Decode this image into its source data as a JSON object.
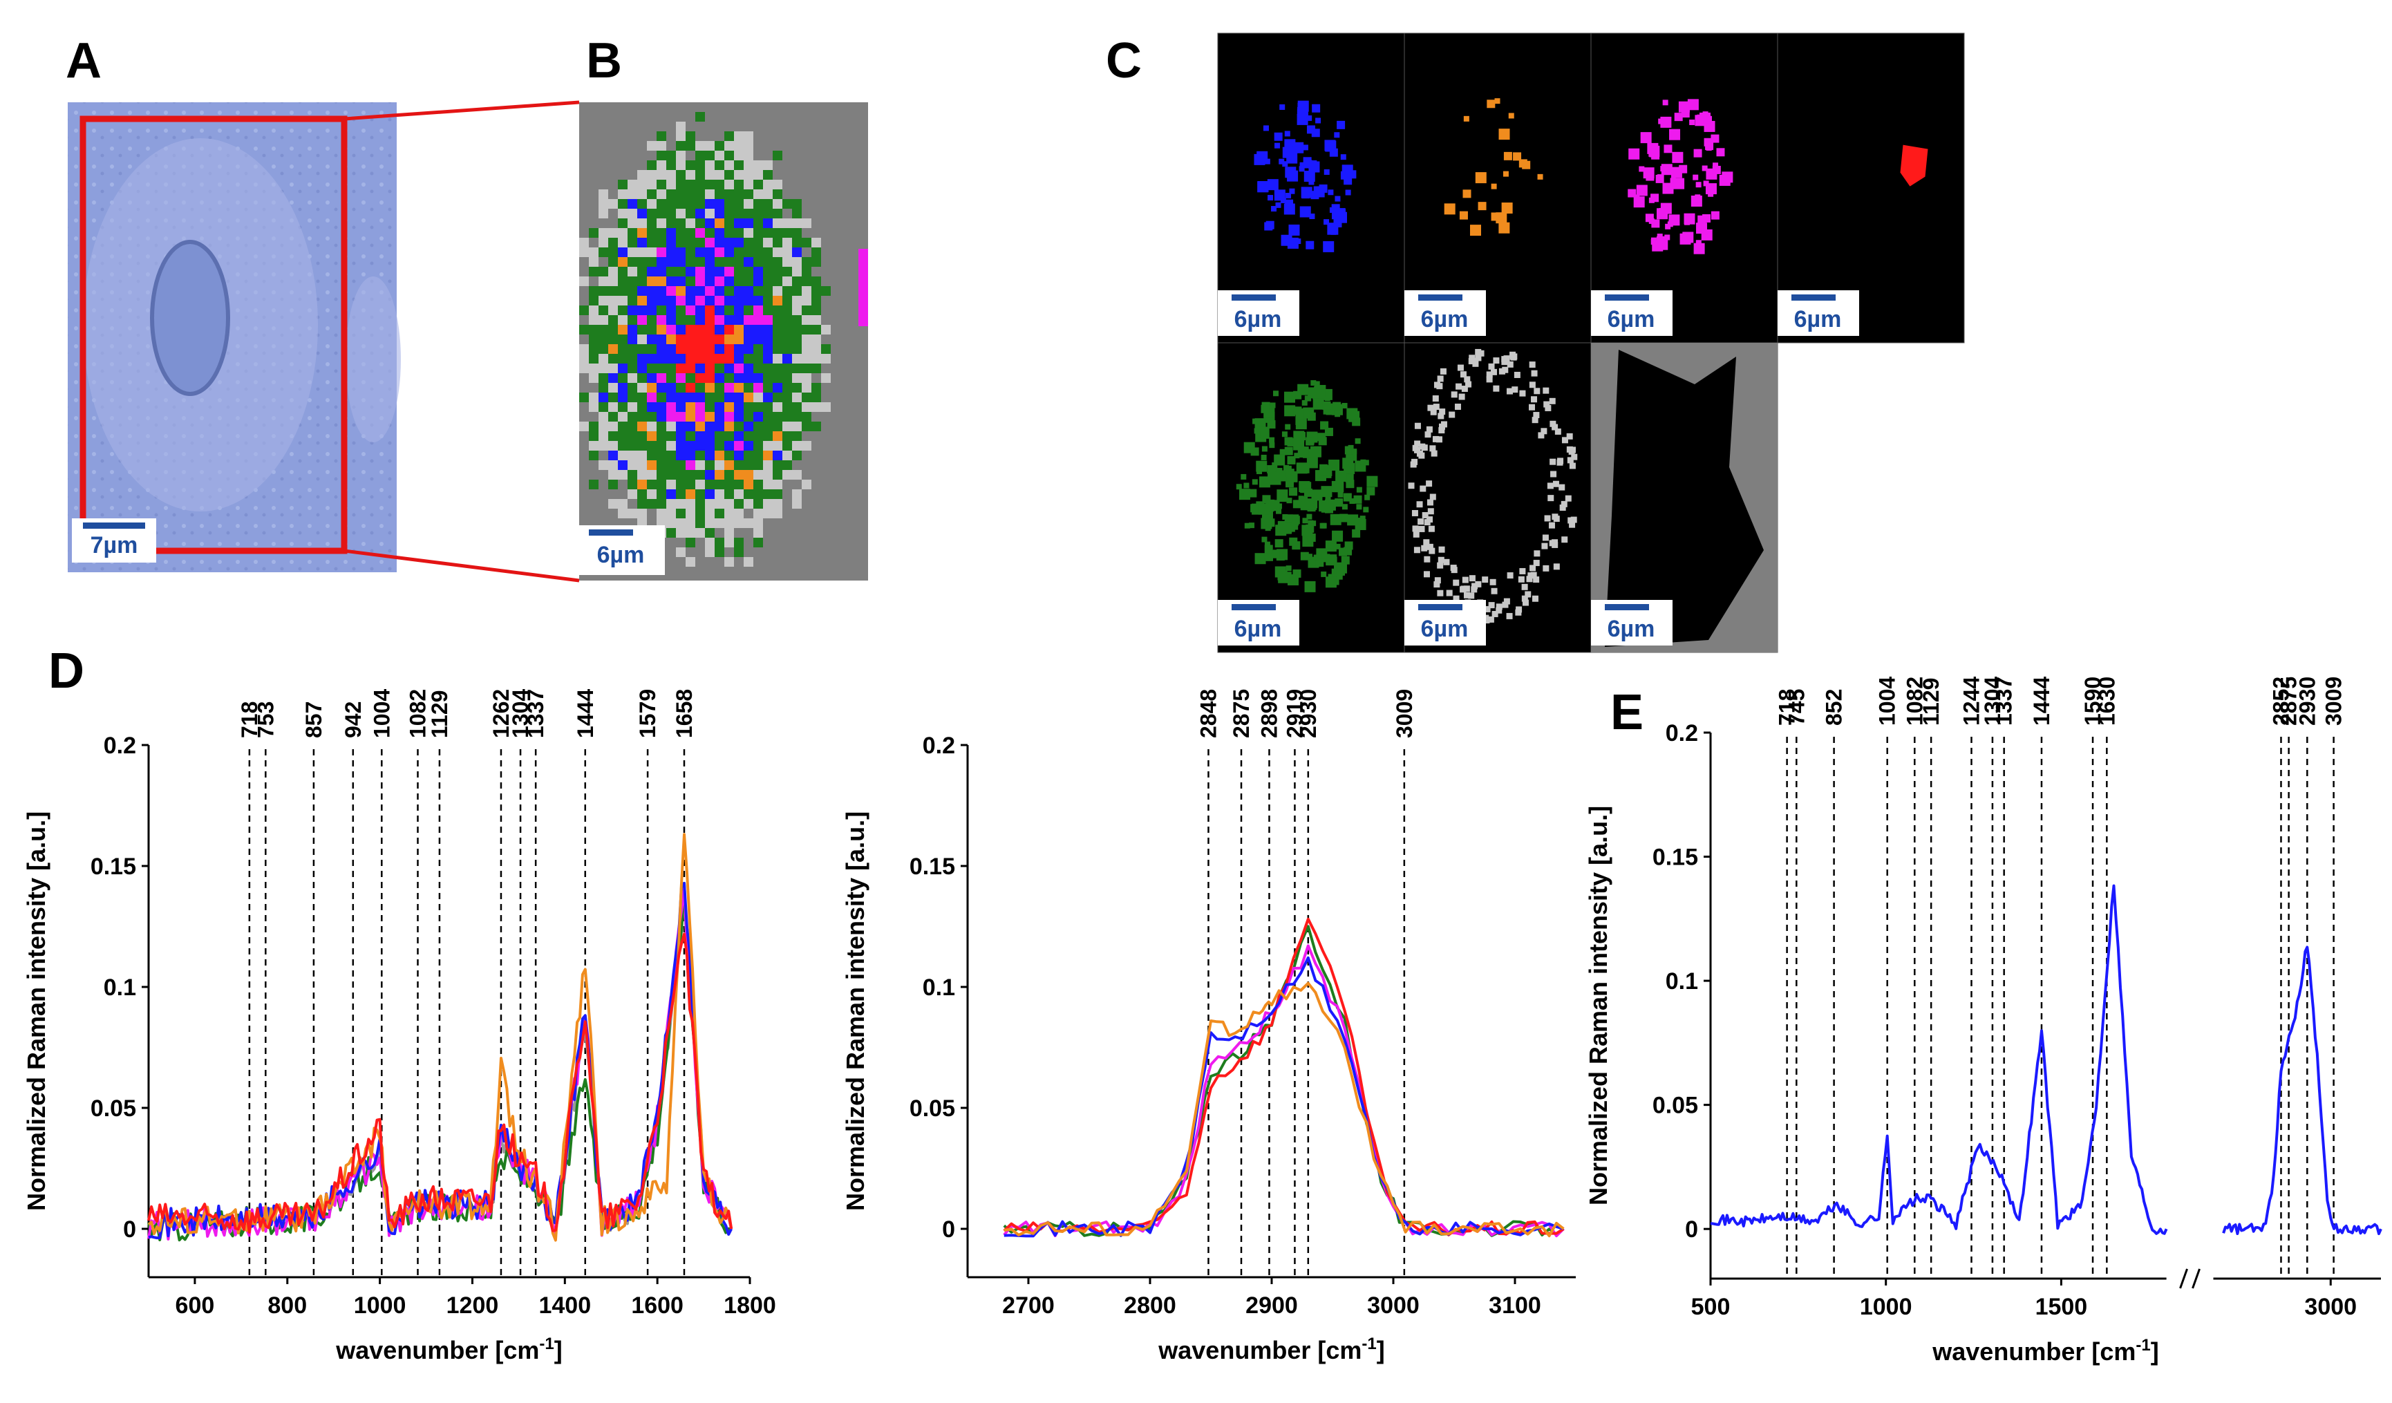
{
  "panels": {
    "A": "A",
    "B": "B",
    "C": "C",
    "D": "D",
    "E": "E"
  },
  "scale_bars": {
    "A": "7µm",
    "B": "6µm",
    "C": "6µm"
  },
  "colors": {
    "blue": "#1a1aff",
    "orange": "#f08c1e",
    "magenta": "#ee1bee",
    "red": "#ff1a1a",
    "green": "#1e7d1e",
    "lightgray": "#c8c8c8",
    "gray": "#7f7f7f",
    "black": "#000000",
    "cell_bg": "#8d9fdc",
    "frame_red": "#e31414",
    "scale_blue": "#1f4e9e"
  },
  "chart_data": [
    {
      "id": "D-left",
      "type": "line",
      "xlabel": "wavenumber [cm-1]",
      "ylabel": "Normalized Raman intensity [a.u.]",
      "xlim": [
        500,
        1800
      ],
      "ylim": [
        -0.02,
        0.2
      ],
      "xticks": [
        600,
        800,
        1000,
        1200,
        1400,
        1600,
        1800
      ],
      "yticks": [
        0,
        0.05,
        0.1,
        0.15,
        0.2
      ],
      "ytick_labels": [
        "0",
        "0.05",
        "0.1",
        "0.15",
        "0.2"
      ],
      "peaks": [
        718,
        753,
        857,
        942,
        1004,
        1082,
        1129,
        1262,
        1304,
        1337,
        1444,
        1579,
        1658
      ],
      "peak_labels": [
        "718",
        "753",
        "857",
        "942",
        "1004",
        "1082",
        "1129",
        "1262",
        "1304",
        "1337",
        "1444",
        "1579",
        "1658"
      ],
      "series": [
        {
          "name": "gray",
          "color": "#9a9a9a",
          "points": [
            [
              500,
              0.002
            ],
            [
              700,
              0.004
            ],
            [
              860,
              0.005
            ],
            [
              1000,
              0.03
            ],
            [
              1020,
              0.002
            ],
            [
              1080,
              0.01
            ],
            [
              1240,
              0.01
            ],
            [
              1262,
              0.035
            ],
            [
              1300,
              0.024
            ],
            [
              1337,
              0.02
            ],
            [
              1380,
              0.002
            ],
            [
              1444,
              0.085
            ],
            [
              1480,
              0.003
            ],
            [
              1560,
              0.01
            ],
            [
              1600,
              0.04
            ],
            [
              1658,
              0.14
            ],
            [
              1700,
              0.02
            ],
            [
              1760,
              0.0
            ]
          ]
        },
        {
          "name": "green",
          "color": "#1e7d1e",
          "points": [
            [
              500,
              0.0
            ],
            [
              700,
              0.003
            ],
            [
              860,
              0.004
            ],
            [
              1000,
              0.028
            ],
            [
              1020,
              0.001
            ],
            [
              1080,
              0.009
            ],
            [
              1240,
              0.008
            ],
            [
              1262,
              0.03
            ],
            [
              1300,
              0.022
            ],
            [
              1337,
              0.018
            ],
            [
              1380,
              0.0
            ],
            [
              1444,
              0.065
            ],
            [
              1480,
              0.002
            ],
            [
              1560,
              0.01
            ],
            [
              1600,
              0.04
            ],
            [
              1658,
              0.138
            ],
            [
              1700,
              0.02
            ],
            [
              1760,
              0.0
            ]
          ]
        },
        {
          "name": "magenta",
          "color": "#ee1bee",
          "points": [
            [
              500,
              0.001
            ],
            [
              700,
              0.003
            ],
            [
              860,
              0.004
            ],
            [
              1000,
              0.03
            ],
            [
              1020,
              0.001
            ],
            [
              1080,
              0.009
            ],
            [
              1240,
              0.009
            ],
            [
              1262,
              0.038
            ],
            [
              1300,
              0.025
            ],
            [
              1337,
              0.02
            ],
            [
              1380,
              0.001
            ],
            [
              1444,
              0.09
            ],
            [
              1480,
              0.002
            ],
            [
              1560,
              0.01
            ],
            [
              1600,
              0.045
            ],
            [
              1658,
              0.14
            ],
            [
              1700,
              0.02
            ],
            [
              1760,
              0.0
            ]
          ]
        },
        {
          "name": "blue",
          "color": "#1a1aff",
          "points": [
            [
              500,
              0.002
            ],
            [
              700,
              0.004
            ],
            [
              860,
              0.005
            ],
            [
              1000,
              0.032
            ],
            [
              1020,
              0.002
            ],
            [
              1080,
              0.01
            ],
            [
              1240,
              0.01
            ],
            [
              1262,
              0.04
            ],
            [
              1300,
              0.026
            ],
            [
              1337,
              0.02
            ],
            [
              1380,
              0.002
            ],
            [
              1444,
              0.092
            ],
            [
              1480,
              0.003
            ],
            [
              1560,
              0.012
            ],
            [
              1600,
              0.048
            ],
            [
              1658,
              0.148
            ],
            [
              1700,
              0.02
            ],
            [
              1760,
              0.0
            ]
          ]
        },
        {
          "name": "orange",
          "color": "#f08c1e",
          "points": [
            [
              500,
              0.003
            ],
            [
              700,
              0.004
            ],
            [
              860,
              0.005
            ],
            [
              1000,
              0.04
            ],
            [
              1020,
              0.002
            ],
            [
              1080,
              0.01
            ],
            [
              1240,
              0.01
            ],
            [
              1262,
              0.065
            ],
            [
              1300,
              0.03
            ],
            [
              1337,
              0.02
            ],
            [
              1380,
              0.001
            ],
            [
              1444,
              0.11
            ],
            [
              1480,
              0.003
            ],
            [
              1560,
              0.008
            ],
            [
              1620,
              0.02
            ],
            [
              1658,
              0.165
            ],
            [
              1700,
              0.02
            ],
            [
              1760,
              0.0
            ]
          ]
        },
        {
          "name": "red",
          "color": "#ff1a1a",
          "points": [
            [
              500,
              0.005
            ],
            [
              700,
              0.004
            ],
            [
              860,
              0.005
            ],
            [
              1000,
              0.042
            ],
            [
              1020,
              0.002
            ],
            [
              1080,
              0.012
            ],
            [
              1240,
              0.012
            ],
            [
              1262,
              0.045
            ],
            [
              1300,
              0.027
            ],
            [
              1337,
              0.022
            ],
            [
              1380,
              0.002
            ],
            [
              1444,
              0.09
            ],
            [
              1480,
              0.003
            ],
            [
              1560,
              0.012
            ],
            [
              1600,
              0.048
            ],
            [
              1658,
              0.125
            ],
            [
              1700,
              0.02
            ],
            [
              1760,
              0.0
            ]
          ]
        }
      ]
    },
    {
      "id": "D-right",
      "type": "line",
      "xlabel": "wavenumber [cm-1]",
      "ylabel": "Normalized Raman intensity [a.u.]",
      "xlim": [
        2650,
        3150
      ],
      "ylim": [
        -0.02,
        0.2
      ],
      "xticks": [
        2700,
        2800,
        2900,
        3000,
        3100
      ],
      "yticks": [
        0,
        0.05,
        0.1,
        0.15,
        0.2
      ],
      "ytick_labels": [
        "0",
        "0.05",
        "0.1",
        "0.15",
        "0.2"
      ],
      "peaks": [
        2848,
        2875,
        2898,
        2919,
        2930,
        3009
      ],
      "peak_labels": [
        "2848",
        "2875",
        "2898",
        "2919",
        "2930",
        "3009"
      ],
      "series": [
        {
          "name": "green",
          "color": "#1e7d1e",
          "points": [
            [
              2680,
              0.0
            ],
            [
              2800,
              0.0
            ],
            [
              2830,
              0.02
            ],
            [
              2850,
              0.065
            ],
            [
              2880,
              0.075
            ],
            [
              2900,
              0.085
            ],
            [
              2930,
              0.125
            ],
            [
              2960,
              0.085
            ],
            [
              2990,
              0.02
            ],
            [
              3010,
              0.0
            ],
            [
              3140,
              0.0
            ]
          ]
        },
        {
          "name": "magenta",
          "color": "#ee1bee",
          "points": [
            [
              2680,
              0.0
            ],
            [
              2800,
              0.0
            ],
            [
              2830,
              0.02
            ],
            [
              2850,
              0.07
            ],
            [
              2880,
              0.078
            ],
            [
              2900,
              0.09
            ],
            [
              2930,
              0.115
            ],
            [
              2960,
              0.085
            ],
            [
              2990,
              0.02
            ],
            [
              3010,
              0.0
            ],
            [
              3140,
              0.0
            ]
          ]
        },
        {
          "name": "red",
          "color": "#ff1a1a",
          "points": [
            [
              2680,
              0.0
            ],
            [
              2800,
              0.0
            ],
            [
              2830,
              0.015
            ],
            [
              2850,
              0.06
            ],
            [
              2880,
              0.073
            ],
            [
              2900,
              0.085
            ],
            [
              2930,
              0.13
            ],
            [
              2960,
              0.09
            ],
            [
              2990,
              0.022
            ],
            [
              3010,
              0.0
            ],
            [
              3140,
              0.0
            ]
          ]
        },
        {
          "name": "blue",
          "color": "#1a1aff",
          "points": [
            [
              2680,
              0.0
            ],
            [
              2800,
              0.0
            ],
            [
              2830,
              0.025
            ],
            [
              2850,
              0.08
            ],
            [
              2870,
              0.078
            ],
            [
              2900,
              0.09
            ],
            [
              2930,
              0.11
            ],
            [
              2960,
              0.08
            ],
            [
              2990,
              0.02
            ],
            [
              3010,
              0.0
            ],
            [
              3140,
              0.0
            ]
          ]
        },
        {
          "name": "orange",
          "color": "#f08c1e",
          "points": [
            [
              2680,
              0.0
            ],
            [
              2800,
              0.0
            ],
            [
              2830,
              0.025
            ],
            [
              2850,
              0.085
            ],
            [
              2870,
              0.082
            ],
            [
              2890,
              0.09
            ],
            [
              2900,
              0.095
            ],
            [
              2930,
              0.1
            ],
            [
              2960,
              0.075
            ],
            [
              2990,
              0.02
            ],
            [
              3010,
              0.0
            ],
            [
              3140,
              0.0
            ]
          ]
        }
      ]
    },
    {
      "id": "E",
      "type": "line",
      "xlabel": "wavenumber [cm-1]",
      "ylabel": "Normalized Raman intensity [a.u.]",
      "xlim": [
        500,
        3150
      ],
      "ylim": [
        -0.02,
        0.2
      ],
      "xaxis_break": [
        1800,
        2650
      ],
      "xticks": [
        500,
        1000,
        1500,
        3000
      ],
      "yticks": [
        0,
        0.05,
        0.1,
        0.15,
        0.2
      ],
      "ytick_labels": [
        "0",
        "0.05",
        "0.1",
        "0.15",
        "0.2"
      ],
      "peaks": [
        718,
        745,
        852,
        1004,
        1082,
        1129,
        1244,
        1304,
        1337,
        1444,
        1590,
        1630,
        2852,
        2875,
        2930,
        3009
      ],
      "peak_labels": [
        "718",
        "745",
        "852",
        "1004",
        "1082",
        "1129",
        "1244",
        "1304",
        "1337",
        "1444",
        "1590",
        "1630",
        "2852",
        "2875",
        "2930",
        "3009"
      ],
      "series": [
        {
          "name": "blue",
          "color": "#1a1aff",
          "points": [
            [
              500,
              0.004
            ],
            [
              600,
              0.003
            ],
            [
              700,
              0.005
            ],
            [
              800,
              0.003
            ],
            [
              860,
              0.01
            ],
            [
              920,
              0.002
            ],
            [
              980,
              0.005
            ],
            [
              1004,
              0.037
            ],
            [
              1020,
              0.004
            ],
            [
              1082,
              0.012
            ],
            [
              1129,
              0.012
            ],
            [
              1200,
              0.002
            ],
            [
              1262,
              0.033
            ],
            [
              1300,
              0.028
            ],
            [
              1337,
              0.02
            ],
            [
              1380,
              0.002
            ],
            [
              1444,
              0.08
            ],
            [
              1490,
              0.002
            ],
            [
              1560,
              0.01
            ],
            [
              1600,
              0.05
            ],
            [
              1650,
              0.14
            ],
            [
              1700,
              0.03
            ],
            [
              1760,
              0.0
            ],
            [
              1800,
              0.0
            ]
          ]
        },
        {
          "name": "blue-hf",
          "color": "#1a1aff",
          "points": [
            [
              2680,
              0.0
            ],
            [
              2800,
              0.0
            ],
            [
              2830,
              0.02
            ],
            [
              2852,
              0.065
            ],
            [
              2900,
              0.09
            ],
            [
              2930,
              0.115
            ],
            [
              2960,
              0.07
            ],
            [
              2990,
              0.01
            ],
            [
              3010,
              0.0
            ],
            [
              3150,
              0.0
            ]
          ]
        }
      ]
    }
  ]
}
